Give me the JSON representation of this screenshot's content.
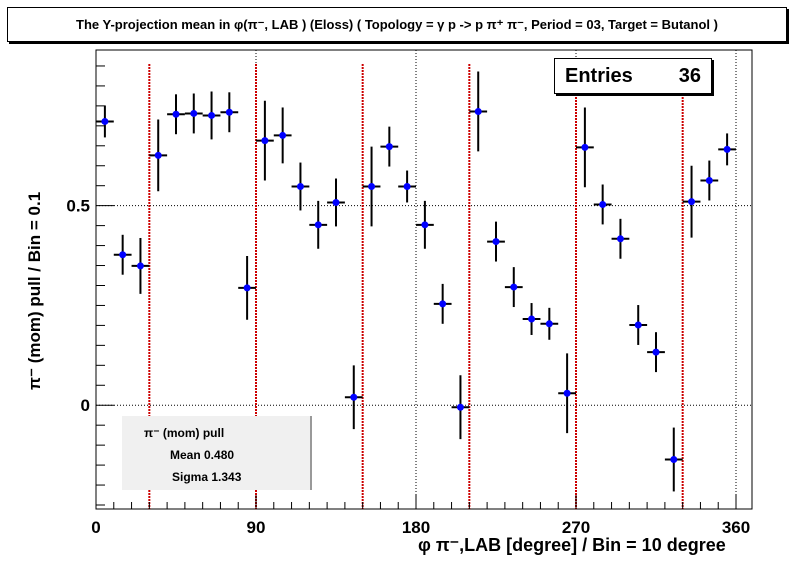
{
  "title": "The Y-projection mean in φ(π⁻, LAB ) (Eloss) ( Topology = γ p -> p π⁺ π⁻, Period = 03, Target = Butanol )",
  "entries": {
    "label": "Entries",
    "value": "36"
  },
  "stats": {
    "name": "π⁻ (mom) pull",
    "mean": "Mean 0.480",
    "sigma": "Sigma 1.343"
  },
  "chart_data": {
    "type": "scatter",
    "title": "The Y-projection mean in φ(π⁻, LAB ) (Eloss) ( Topology = γ p -> p π⁺ π⁻, Period = 03, Target = Butanol )",
    "xlabel": "φ π⁻,LAB [degree] / Bin = 10 degree",
    "ylabel": "π⁻ (mom) pull / Bin = 0.1",
    "xlim": [
      0,
      369
    ],
    "ylim": [
      -0.26,
      0.89
    ],
    "x_ticks": [
      "0",
      "90",
      "180",
      "270",
      "360"
    ],
    "y_ticks": [
      "0",
      "0.5"
    ],
    "grid": true,
    "marker_color": "#0000ff",
    "ref_line_color": "#cc0000",
    "ref_lines_x": [
      30,
      90,
      150,
      210,
      270,
      330
    ],
    "x_err": 5,
    "x": [
      5,
      15,
      25,
      35,
      45,
      55,
      65,
      75,
      85,
      95,
      105,
      115,
      125,
      135,
      145,
      155,
      165,
      175,
      185,
      195,
      205,
      215,
      225,
      235,
      245,
      255,
      265,
      275,
      285,
      295,
      305,
      315,
      325,
      335,
      345,
      355
    ],
    "y": [
      0.711,
      0.377,
      0.349,
      0.626,
      0.729,
      0.731,
      0.726,
      0.734,
      0.294,
      0.663,
      0.676,
      0.548,
      0.452,
      0.508,
      0.02,
      0.548,
      0.648,
      0.548,
      0.452,
      0.254,
      -0.005,
      0.736,
      0.41,
      0.296,
      0.216,
      0.204,
      0.03,
      0.646,
      0.503,
      0.417,
      0.201,
      0.133,
      -0.136,
      0.51,
      0.563,
      0.641
    ],
    "y_err": [
      0.04,
      0.05,
      0.07,
      0.09,
      0.05,
      0.05,
      0.06,
      0.05,
      0.08,
      0.1,
      0.07,
      0.06,
      0.06,
      0.06,
      0.08,
      0.1,
      0.05,
      0.04,
      0.06,
      0.05,
      0.08,
      0.1,
      0.05,
      0.05,
      0.04,
      0.04,
      0.1,
      0.1,
      0.05,
      0.05,
      0.05,
      0.05,
      0.08,
      0.09,
      0.05,
      0.04
    ]
  }
}
